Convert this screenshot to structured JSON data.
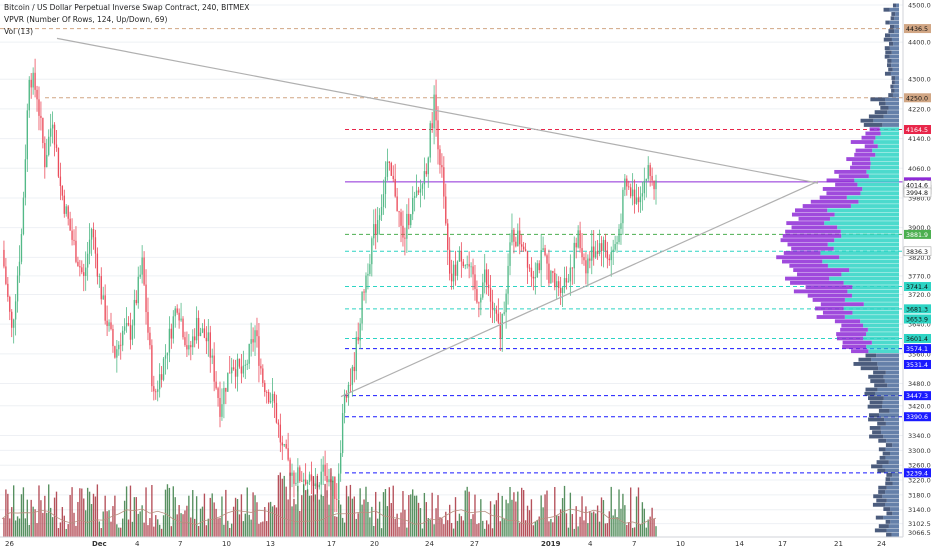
{
  "legend": {
    "symbol": "Bitcoin / US Dollar Perpetual Inverse Swap Contract, 240, BITMEX",
    "vpvr": "VPVR (Number Of Rows, 124, Up/Down, 69)",
    "vol": "Vol (13)"
  },
  "colors": {
    "up": "#53b987",
    "down": "#eb4d5c",
    "volume_up": "#3a7d44",
    "volume_down": "#a8323e",
    "profile_main_up": "#2dd4c4",
    "profile_main_down": "#8e2ad6",
    "profile_other_up": "#4a6a9a",
    "profile_other_down": "#2c3f66",
    "trendline": "#b0b0b0",
    "axis_text": "#333333"
  },
  "chart_data": {
    "type": "candlestick",
    "y_axis_labels": [
      "4500.0",
      "4400.0",
      "4300.0",
      "4220.0",
      "4140.0",
      "4060.0",
      "3980.0",
      "3900.0",
      "3820.0",
      "3770.0",
      "3720.0",
      "3640.0",
      "3560.0",
      "3480.0",
      "3420.0",
      "3340.0",
      "3300.0",
      "3260.0",
      "3220.0",
      "3180.0",
      "3140.0",
      "3102.5",
      "3066.5"
    ],
    "x_axis_labels": [
      "26",
      "Dec",
      "4",
      "7",
      "10",
      "13",
      "17",
      "20",
      "24",
      "27",
      "2019",
      "4",
      "7",
      "10",
      "14",
      "17",
      "21",
      "24"
    ],
    "ylim": [
      3066.5,
      4500
    ],
    "price_tags": [
      {
        "value": 4436.5,
        "label": "4436.5",
        "color": "#d1a684"
      },
      {
        "value": 4250.0,
        "label": "4250.0",
        "color": "#d1a684"
      },
      {
        "value": 4164.5,
        "label": "4164.5",
        "color": "#e8264a"
      },
      {
        "value": 4023.5,
        "label": "4023.5",
        "color": "#8e2ad6"
      },
      {
        "value": 4002.5,
        "label": "4002.5",
        "color": "#ffffff"
      },
      {
        "value": 4014.6,
        "label": "4014.6",
        "color": "#ffffff"
      },
      {
        "value": 3994.8,
        "label": "3994.8",
        "color": "#ffffff"
      },
      {
        "value": 3881.9,
        "label": "3881.9",
        "color": "#4caf50"
      },
      {
        "value": 3836.3,
        "label": "3836.3",
        "color": "#ffffff"
      },
      {
        "value": 3741.4,
        "label": "3741.4",
        "color": "#2dd4c4"
      },
      {
        "value": 3681.3,
        "label": "3681.3",
        "color": "#2dd4c4"
      },
      {
        "value": 3653.9,
        "label": "3653.9",
        "color": "#2dd4c4"
      },
      {
        "value": 3601.4,
        "label": "3601.4",
        "color": "#2dd4c4"
      },
      {
        "value": 3574.1,
        "label": "3574.1",
        "color": "#1a1aff"
      },
      {
        "value": 3531.4,
        "label": "3531.4",
        "color": "#1a1aff"
      },
      {
        "value": 3447.3,
        "label": "3447.3",
        "color": "#1a1aff"
      },
      {
        "value": 3390.6,
        "label": "3390.6",
        "color": "#1a1aff"
      },
      {
        "value": 3239.4,
        "label": "3239.4",
        "color": "#1a1aff"
      }
    ],
    "horizontal_levels": [
      {
        "value": 4436.5,
        "color": "#d1a684",
        "style": "dashed"
      },
      {
        "value": 4250.0,
        "color": "#d1a684",
        "style": "dashed"
      },
      {
        "value": 4164.5,
        "color": "#e8264a",
        "style": "dashed"
      },
      {
        "value": 4023.5,
        "color": "#8e2ad6",
        "style": "solid"
      },
      {
        "value": 3881.9,
        "color": "#4caf50",
        "style": "dashed"
      },
      {
        "value": 3836.3,
        "color": "#2dd4c4",
        "style": "dashed"
      },
      {
        "value": 3741.4,
        "color": "#2dd4c4",
        "style": "dashed"
      },
      {
        "value": 3681.3,
        "color": "#2dd4c4",
        "style": "dashed"
      },
      {
        "value": 3601.4,
        "color": "#2dd4c4",
        "style": "dashed"
      },
      {
        "value": 3574.1,
        "color": "#1a1aff",
        "style": "dashed"
      },
      {
        "value": 3447.3,
        "color": "#1a1aff",
        "style": "dashed"
      },
      {
        "value": 3390.6,
        "color": "#1a1aff",
        "style": "dashed"
      },
      {
        "value": 3239.4,
        "color": "#1a1aff",
        "style": "dashed"
      }
    ],
    "trendlines": [
      {
        "from": {
          "x": "26 Nov",
          "y": 4410
        },
        "to": {
          "x": "21 Jan",
          "y": 4020
        }
      },
      {
        "from": {
          "x": "17 Dec",
          "y": 3440
        },
        "to": {
          "x": "21 Jan",
          "y": 4025
        }
      }
    ]
  }
}
